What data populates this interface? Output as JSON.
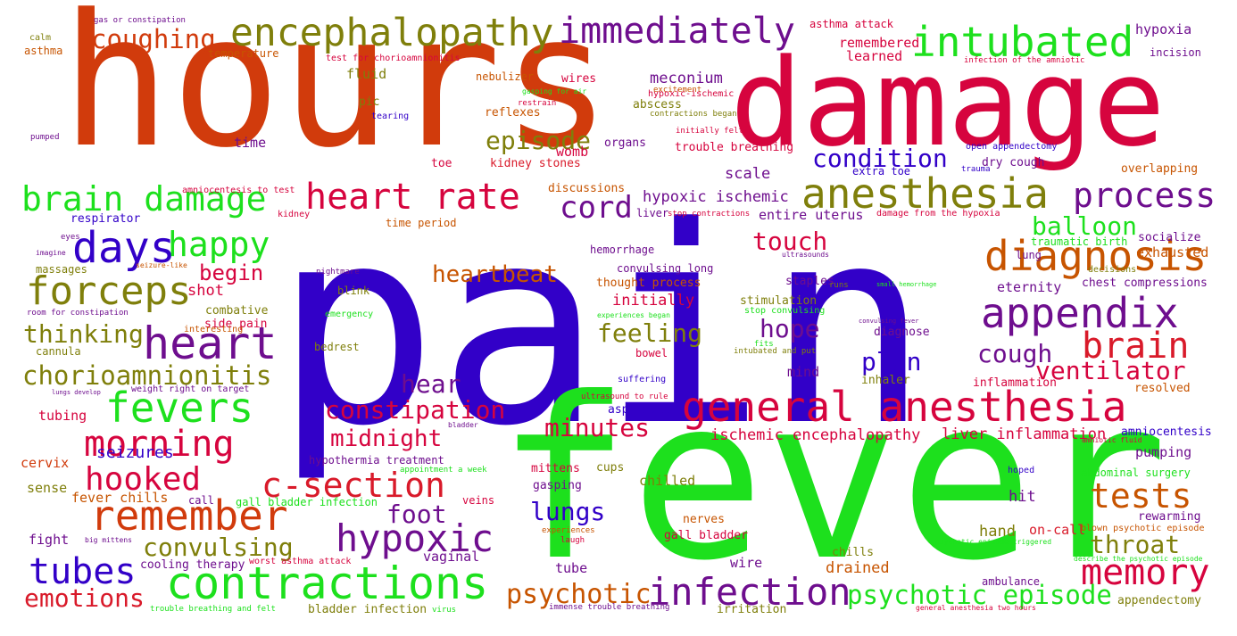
{
  "palette": {
    "red": "#d91a2a",
    "orange": "#d13b0c",
    "green": "#1de01d",
    "blue": "#3200c8",
    "olive": "#7f7f0b",
    "purple": "#6e0e8e",
    "crimson": "#d6043e",
    "darkorange": "#c75400",
    "bright_green": "#28d52b",
    "grey": "#8a8a8a"
  },
  "words": [
    {
      "text": "pain",
      "color": "blue"
    },
    {
      "text": "hours",
      "color": "orange"
    },
    {
      "text": "fever",
      "color": "green"
    },
    {
      "text": "damage",
      "color": "crimson"
    },
    {
      "text": "anesthesia",
      "color": "olive"
    },
    {
      "text": "general anesthesia",
      "color": "crimson"
    },
    {
      "text": "encephalopathy",
      "color": "olive"
    },
    {
      "text": "intubated",
      "color": "green"
    },
    {
      "text": "contractions",
      "color": "green"
    },
    {
      "text": "immediately",
      "color": "purple"
    },
    {
      "text": "brain damage",
      "color": "green"
    },
    {
      "text": "heart rate",
      "color": "crimson"
    },
    {
      "text": "forceps",
      "color": "olive"
    },
    {
      "text": "heart",
      "color": "purple"
    },
    {
      "text": "days",
      "color": "blue"
    },
    {
      "text": "remember",
      "color": "orange"
    },
    {
      "text": "appendix",
      "color": "purple"
    },
    {
      "text": "process",
      "color": "purple"
    },
    {
      "text": "diagnosis",
      "color": "darkorange"
    },
    {
      "text": "infection",
      "color": "purple"
    },
    {
      "text": "hypoxic",
      "color": "purple"
    },
    {
      "text": "fevers",
      "color": "green"
    },
    {
      "text": "morning",
      "color": "crimson"
    },
    {
      "text": "hooked",
      "color": "crimson"
    },
    {
      "text": "tubes",
      "color": "blue"
    },
    {
      "text": "memory",
      "color": "crimson"
    },
    {
      "text": "brain",
      "color": "red"
    },
    {
      "text": "c-section",
      "color": "red"
    },
    {
      "text": "tests",
      "color": "darkorange"
    },
    {
      "text": "psychotic episode",
      "color": "green"
    },
    {
      "text": "chorioamnionitis",
      "color": "olive"
    },
    {
      "text": "coughing",
      "color": "orange"
    },
    {
      "text": "happy",
      "color": "green"
    },
    {
      "text": "cord",
      "color": "purple"
    },
    {
      "text": "condition",
      "color": "blue"
    },
    {
      "text": "episode",
      "color": "olive"
    },
    {
      "text": "balloon",
      "color": "green"
    },
    {
      "text": "ventilator",
      "color": "crimson"
    },
    {
      "text": "psychotic",
      "color": "darkorange"
    },
    {
      "text": "emotions",
      "color": "red"
    },
    {
      "text": "convulsing",
      "color": "olive"
    },
    {
      "text": "throat",
      "color": "olive"
    },
    {
      "text": "constipation",
      "color": "crimson"
    },
    {
      "text": "feeling",
      "color": "olive"
    },
    {
      "text": "heartbeat",
      "color": "darkorange"
    },
    {
      "text": "touch",
      "color": "crimson"
    },
    {
      "text": "hope",
      "color": "purple"
    },
    {
      "text": "cough",
      "color": "purple"
    },
    {
      "text": "plan",
      "color": "blue"
    },
    {
      "text": "thinking",
      "color": "olive"
    },
    {
      "text": "lungs",
      "color": "blue"
    },
    {
      "text": "minutes",
      "color": "crimson"
    },
    {
      "text": "midnight",
      "color": "crimson"
    },
    {
      "text": "foot",
      "color": "purple"
    },
    {
      "text": "hear",
      "color": "purple"
    },
    {
      "text": "begin",
      "color": "crimson"
    },
    {
      "text": "seizures",
      "color": "blue"
    },
    {
      "text": "hypoxic ischemic",
      "color": "purple"
    },
    {
      "text": "ischemic encephalopathy",
      "color": "crimson"
    },
    {
      "text": "liver inflammation",
      "color": "crimson"
    },
    {
      "text": "scale",
      "color": "purple"
    },
    {
      "text": "meconium",
      "color": "purple"
    },
    {
      "text": "hypoxia",
      "color": "purple"
    },
    {
      "text": "learned",
      "color": "crimson"
    },
    {
      "text": "remembered",
      "color": "crimson"
    },
    {
      "text": "asthma attack",
      "color": "crimson"
    },
    {
      "text": "fluid",
      "color": "olive"
    },
    {
      "text": "pic",
      "color": "olive"
    },
    {
      "text": "time",
      "color": "purple"
    },
    {
      "text": "toe",
      "color": "crimson"
    },
    {
      "text": "womb",
      "color": "crimson"
    },
    {
      "text": "kidney stones",
      "color": "red"
    },
    {
      "text": "organs",
      "color": "purple"
    },
    {
      "text": "reflexes",
      "color": "darkorange"
    },
    {
      "text": "abscess",
      "color": "olive"
    },
    {
      "text": "nebulizer",
      "color": "darkorange"
    },
    {
      "text": "wires",
      "color": "crimson"
    },
    {
      "text": "shot",
      "color": "crimson"
    },
    {
      "text": "tubing",
      "color": "crimson"
    },
    {
      "text": "cervix",
      "color": "orange"
    },
    {
      "text": "sense",
      "color": "olive"
    },
    {
      "text": "fight",
      "color": "purple"
    },
    {
      "text": "fever chills",
      "color": "darkorange"
    },
    {
      "text": "side pain",
      "color": "crimson"
    },
    {
      "text": "combative",
      "color": "olive"
    },
    {
      "text": "cooling therapy",
      "color": "purple"
    },
    {
      "text": "vaginal",
      "color": "purple"
    },
    {
      "text": "tube",
      "color": "purple"
    },
    {
      "text": "drained",
      "color": "darkorange"
    },
    {
      "text": "chills",
      "color": "olive"
    },
    {
      "text": "hand",
      "color": "olive"
    },
    {
      "text": "hit",
      "color": "purple"
    },
    {
      "text": "on-call",
      "color": "red"
    },
    {
      "text": "wire",
      "color": "purple"
    },
    {
      "text": "nerves",
      "color": "darkorange"
    },
    {
      "text": "gall bladder",
      "color": "crimson"
    },
    {
      "text": "chilled",
      "color": "olive"
    },
    {
      "text": "mittens",
      "color": "crimson"
    },
    {
      "text": "gasping",
      "color": "purple"
    },
    {
      "text": "cups",
      "color": "olive"
    },
    {
      "text": "aspiration",
      "color": "blue"
    },
    {
      "text": "initially",
      "color": "crimson"
    },
    {
      "text": "thought process",
      "color": "darkorange"
    },
    {
      "text": "staples",
      "color": "purple"
    },
    {
      "text": "stimulation",
      "color": "olive"
    },
    {
      "text": "mind",
      "color": "purple"
    },
    {
      "text": "inhaler",
      "color": "olive"
    },
    {
      "text": "diagnose",
      "color": "purple"
    },
    {
      "text": "eternity",
      "color": "purple"
    },
    {
      "text": "chest compressions",
      "color": "purple"
    },
    {
      "text": "exhausted",
      "color": "darkorange"
    },
    {
      "text": "socialize",
      "color": "purple"
    },
    {
      "text": "lung",
      "color": "purple"
    },
    {
      "text": "traumatic birth",
      "color": "green"
    },
    {
      "text": "inflammation",
      "color": "crimson"
    },
    {
      "text": "resolved",
      "color": "darkorange"
    },
    {
      "text": "amniocentesis",
      "color": "blue"
    },
    {
      "text": "pumping",
      "color": "purple"
    },
    {
      "text": "rewarming",
      "color": "purple"
    },
    {
      "text": "abdominal surgery",
      "color": "green"
    },
    {
      "text": "appendectomy",
      "color": "olive"
    },
    {
      "text": "ambulance",
      "color": "purple"
    },
    {
      "text": "irritation",
      "color": "olive"
    },
    {
      "text": "bladder infection",
      "color": "olive"
    },
    {
      "text": "massages",
      "color": "olive"
    },
    {
      "text": "cannula",
      "color": "olive"
    },
    {
      "text": "respirator",
      "color": "blue"
    },
    {
      "text": "entire uterus",
      "color": "purple"
    },
    {
      "text": "discussions",
      "color": "darkorange"
    },
    {
      "text": "trouble breathing",
      "color": "crimson"
    },
    {
      "text": "dry cough",
      "color": "purple"
    },
    {
      "text": "overlapping",
      "color": "darkorange"
    },
    {
      "text": "extra toe",
      "color": "blue"
    },
    {
      "text": "open appendectomy",
      "color": "blue"
    },
    {
      "text": "hemorrhage",
      "color": "purple"
    },
    {
      "text": "convulsing long",
      "color": "purple"
    },
    {
      "text": "bowel",
      "color": "crimson"
    },
    {
      "text": "suffering",
      "color": "blue"
    },
    {
      "text": "hypothermia treatment",
      "color": "purple"
    },
    {
      "text": "emergency",
      "color": "green"
    },
    {
      "text": "blink",
      "color": "olive"
    },
    {
      "text": "bedrest",
      "color": "olive"
    },
    {
      "text": "veins",
      "color": "crimson"
    },
    {
      "text": "call",
      "color": "purple"
    },
    {
      "text": "gall bladder infection",
      "color": "green"
    },
    {
      "text": "interesting",
      "color": "darkorange"
    },
    {
      "text": "weight right on target",
      "color": "purple"
    },
    {
      "text": "time period",
      "color": "darkorange"
    },
    {
      "text": "kidney",
      "color": "crimson"
    },
    {
      "text": "amniocentesis to test",
      "color": "crimson"
    },
    {
      "text": "test for chorioamnionitis",
      "color": "crimson"
    },
    {
      "text": "temperature",
      "color": "darkorange"
    },
    {
      "text": "asthma",
      "color": "darkorange"
    },
    {
      "text": "calm",
      "color": "olive"
    },
    {
      "text": "gas or constipation",
      "color": "purple"
    },
    {
      "text": "pumped",
      "color": "purple"
    },
    {
      "text": "tearing",
      "color": "blue"
    },
    {
      "text": "restrain",
      "color": "crimson"
    },
    {
      "text": "gasping for air",
      "color": "green"
    },
    {
      "text": "excitement",
      "color": "darkorange"
    },
    {
      "text": "hypoxic-ischemic",
      "color": "crimson"
    },
    {
      "text": "contractions began",
      "color": "olive"
    },
    {
      "text": "initially felt",
      "color": "crimson"
    },
    {
      "text": "infection of the amniotic",
      "color": "crimson"
    },
    {
      "text": "incision",
      "color": "purple"
    },
    {
      "text": "trauma",
      "color": "blue"
    },
    {
      "text": "damage from the hypoxia",
      "color": "crimson"
    },
    {
      "text": "stop contractions",
      "color": "crimson"
    },
    {
      "text": "liver",
      "color": "purple"
    },
    {
      "text": "eyes",
      "color": "purple"
    },
    {
      "text": "imagine",
      "color": "purple"
    },
    {
      "text": "seizure-like",
      "color": "darkorange"
    },
    {
      "text": "nightmare",
      "color": "purple"
    },
    {
      "text": "room for constipation",
      "color": "purple"
    },
    {
      "text": "ultrasounds",
      "color": "purple"
    },
    {
      "text": "runs",
      "color": "olive"
    },
    {
      "text": "decisions",
      "color": "olive"
    },
    {
      "text": "small hemorrhage",
      "color": "green"
    },
    {
      "text": "stop convulsing",
      "color": "green"
    },
    {
      "text": "convulsing fever",
      "color": "purple"
    },
    {
      "text": "fits",
      "color": "green"
    },
    {
      "text": "intubated and put",
      "color": "olive"
    },
    {
      "text": "experiences began",
      "color": "green"
    },
    {
      "text": "ultrasound to rule",
      "color": "crimson"
    },
    {
      "text": "bladder",
      "color": "purple"
    },
    {
      "text": "amniotic fluid",
      "color": "crimson"
    },
    {
      "text": "appointment a week",
      "color": "green"
    },
    {
      "text": "lungs develop",
      "color": "purple"
    },
    {
      "text": "hoped",
      "color": "blue"
    },
    {
      "text": "big mittens",
      "color": "purple"
    },
    {
      "text": "worst asthma attack",
      "color": "crimson"
    },
    {
      "text": "experiences",
      "color": "darkorange"
    },
    {
      "text": "laugh",
      "color": "crimson"
    },
    {
      "text": "blown psychotic episode",
      "color": "darkorange"
    },
    {
      "text": "psychotic episode triggered",
      "color": "green"
    },
    {
      "text": "describe the psychotic episode",
      "color": "green"
    },
    {
      "text": "trouble breathing and felt",
      "color": "green"
    },
    {
      "text": "virus",
      "color": "green"
    },
    {
      "text": "immense trouble breathing",
      "color": "purple"
    },
    {
      "text": "general anesthesia two hours",
      "color": "crimson"
    }
  ]
}
